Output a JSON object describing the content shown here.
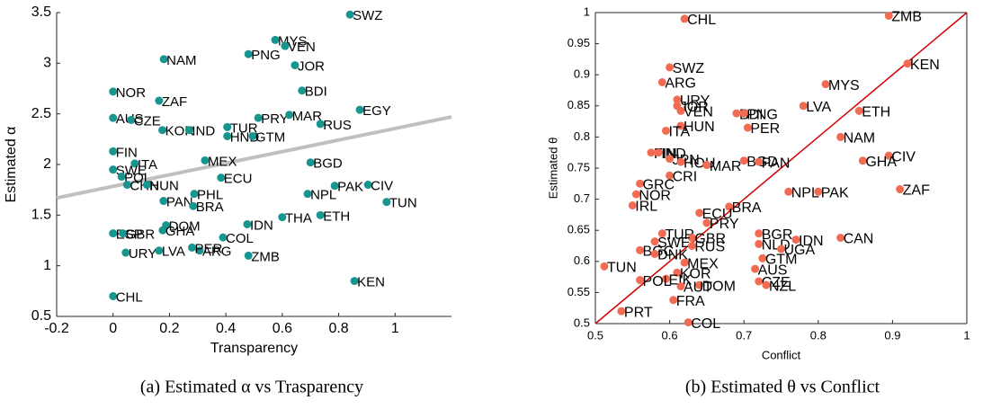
{
  "chart_data": [
    {
      "type": "scatter",
      "caption": "(a) Estimated α vs Trasparency",
      "xlabel": "Transparency",
      "ylabel": "Estimated α",
      "color": "#17958f",
      "grid": false,
      "box": false,
      "xlim": [
        -0.2,
        1.2
      ],
      "ylim": [
        0.5,
        3.5
      ],
      "xticks": [
        -0.2,
        0,
        0.2,
        0.4,
        0.6,
        0.8,
        1
      ],
      "yticks": [
        0.5,
        1,
        1.5,
        2,
        2.5,
        3,
        3.5
      ],
      "trend_line": {
        "x": [
          -0.2,
          1.2
        ],
        "y": [
          1.67,
          2.47
        ],
        "color": "#c0c0c0"
      },
      "labels": [
        "SWZ",
        "MYS",
        "VEN",
        "PNG",
        "JOR",
        "NAM",
        "NOR",
        "ZAF",
        "BDI",
        "EGY",
        "AUS",
        "CZE",
        "PRY",
        "MAR",
        "RUS",
        "KOR",
        "IND",
        "TUR",
        "HND",
        "GTM",
        "FIN",
        "ITA",
        "SWE",
        "POL",
        "CHN",
        "HUN",
        "MEX",
        "BGD",
        "ECU",
        "PAK",
        "CIV",
        "NPL",
        "TUN",
        "PHL",
        "PAN",
        "BRA",
        "IDN",
        "THA",
        "ETH",
        "DOM",
        "GHA",
        "COL",
        "ESP",
        "GBR",
        "URY",
        "LVA",
        "ARG",
        "PER",
        "ZMB",
        "KEN",
        "CHL"
      ],
      "x": [
        0.84,
        0.575,
        0.61,
        0.48,
        0.645,
        0.18,
        0,
        0.163,
        0.67,
        0.875,
        0,
        0.064,
        0.515,
        0.625,
        0.735,
        0.175,
        0.27,
        0.405,
        0.405,
        0.495,
        0,
        0.077,
        0,
        0.03,
        0.05,
        0.12,
        0.326,
        0.7,
        0.383,
        0.786,
        0.904,
        0.69,
        0.97,
        0.288,
        0.179,
        0.284,
        0.476,
        0.6,
        0.735,
        0.188,
        0.176,
        0.39,
        0,
        0.035,
        0.045,
        0.163,
        0.307,
        0.28,
        0.48,
        0.856,
        0
      ],
      "y": [
        3.48,
        3.23,
        3.17,
        3.09,
        2.98,
        3.04,
        2.72,
        2.63,
        2.73,
        2.54,
        2.46,
        2.44,
        2.46,
        2.49,
        2.4,
        2.34,
        2.34,
        2.37,
        2.28,
        2.28,
        2.13,
        2.01,
        1.95,
        1.88,
        1.8,
        1.8,
        2.04,
        2.02,
        1.87,
        1.79,
        1.8,
        1.71,
        1.63,
        1.71,
        1.64,
        1.59,
        1.41,
        1.48,
        1.5,
        1.4,
        1.35,
        1.28,
        1.32,
        1.32,
        1.13,
        1.15,
        1.15,
        1.18,
        1.1,
        0.85,
        0.7
      ]
    },
    {
      "type": "scatter",
      "caption": "(b) Estimated θ vs Conflict",
      "xlabel": "Conflict",
      "ylabel": "Estimated θ",
      "color": "#f26b52",
      "grid": false,
      "box": true,
      "xlim": [
        0.5,
        1
      ],
      "ylim": [
        0.5,
        1
      ],
      "xticks": [
        0.5,
        0.6,
        0.7,
        0.8,
        0.9,
        1
      ],
      "yticks": [
        0.5,
        0.55,
        0.6,
        0.65,
        0.7,
        0.75,
        0.8,
        0.85,
        0.9,
        0.95,
        1
      ],
      "trend_line": {
        "x": [
          0.5,
          1
        ],
        "y": [
          0.5,
          1
        ],
        "color": "#d40000"
      },
      "labels": [
        "CHL",
        "ZMB",
        "KEN",
        "SWZ",
        "ARG",
        "MYS",
        "URY",
        "JOR",
        "VEN",
        "LVA",
        "BDI",
        "PNG",
        "ETH",
        "HUN",
        "PER",
        "ITA",
        "NAM",
        "FIN",
        "IND",
        "JPN",
        "HOU",
        "MAR",
        "BGD",
        "PAN",
        "CIV",
        "GHA",
        "CRI",
        "GRC",
        "NOR",
        "NPL",
        "PAK",
        "ZAF",
        "IRL",
        "BRA",
        "ECU",
        "PRY",
        "TUR",
        "GBR",
        "SWE",
        "BGR",
        "RUS",
        "BGC",
        "DNK",
        "NLD",
        "IDN",
        "CAN",
        "UGA",
        "GTM",
        "MEX",
        "TUN",
        "AUS",
        "KOR",
        "EIK",
        "POL",
        "CZE",
        "DOM",
        "AUT",
        "NZL",
        "FRA",
        "PRT",
        "COL"
      ],
      "x": [
        0.62,
        0.895,
        0.92,
        0.6,
        0.59,
        0.81,
        0.61,
        0.61,
        0.615,
        0.78,
        0.69,
        0.7,
        0.855,
        0.615,
        0.705,
        0.595,
        0.83,
        0.575,
        0.585,
        0.6,
        0.615,
        0.65,
        0.7,
        0.72,
        0.895,
        0.86,
        0.6,
        0.56,
        0.555,
        0.76,
        0.8,
        0.91,
        0.55,
        0.68,
        0.64,
        0.65,
        0.59,
        0.63,
        0.58,
        0.72,
        0.63,
        0.56,
        0.58,
        0.72,
        0.77,
        0.83,
        0.75,
        0.725,
        0.62,
        0.512,
        0.715,
        0.61,
        0.595,
        0.56,
        0.72,
        0.64,
        0.615,
        0.73,
        0.605,
        0.535,
        0.625
      ],
      "y": [
        0.99,
        0.995,
        0.918,
        0.912,
        0.888,
        0.885,
        0.86,
        0.85,
        0.842,
        0.85,
        0.838,
        0.838,
        0.842,
        0.818,
        0.815,
        0.81,
        0.8,
        0.775,
        0.775,
        0.765,
        0.76,
        0.755,
        0.762,
        0.76,
        0.77,
        0.762,
        0.738,
        0.725,
        0.708,
        0.712,
        0.712,
        0.716,
        0.69,
        0.688,
        0.678,
        0.662,
        0.645,
        0.638,
        0.632,
        0.645,
        0.625,
        0.618,
        0.612,
        0.628,
        0.635,
        0.638,
        0.62,
        0.605,
        0.598,
        0.592,
        0.588,
        0.582,
        0.572,
        0.57,
        0.568,
        0.562,
        0.56,
        0.562,
        0.538,
        0.52,
        0.502
      ]
    }
  ]
}
